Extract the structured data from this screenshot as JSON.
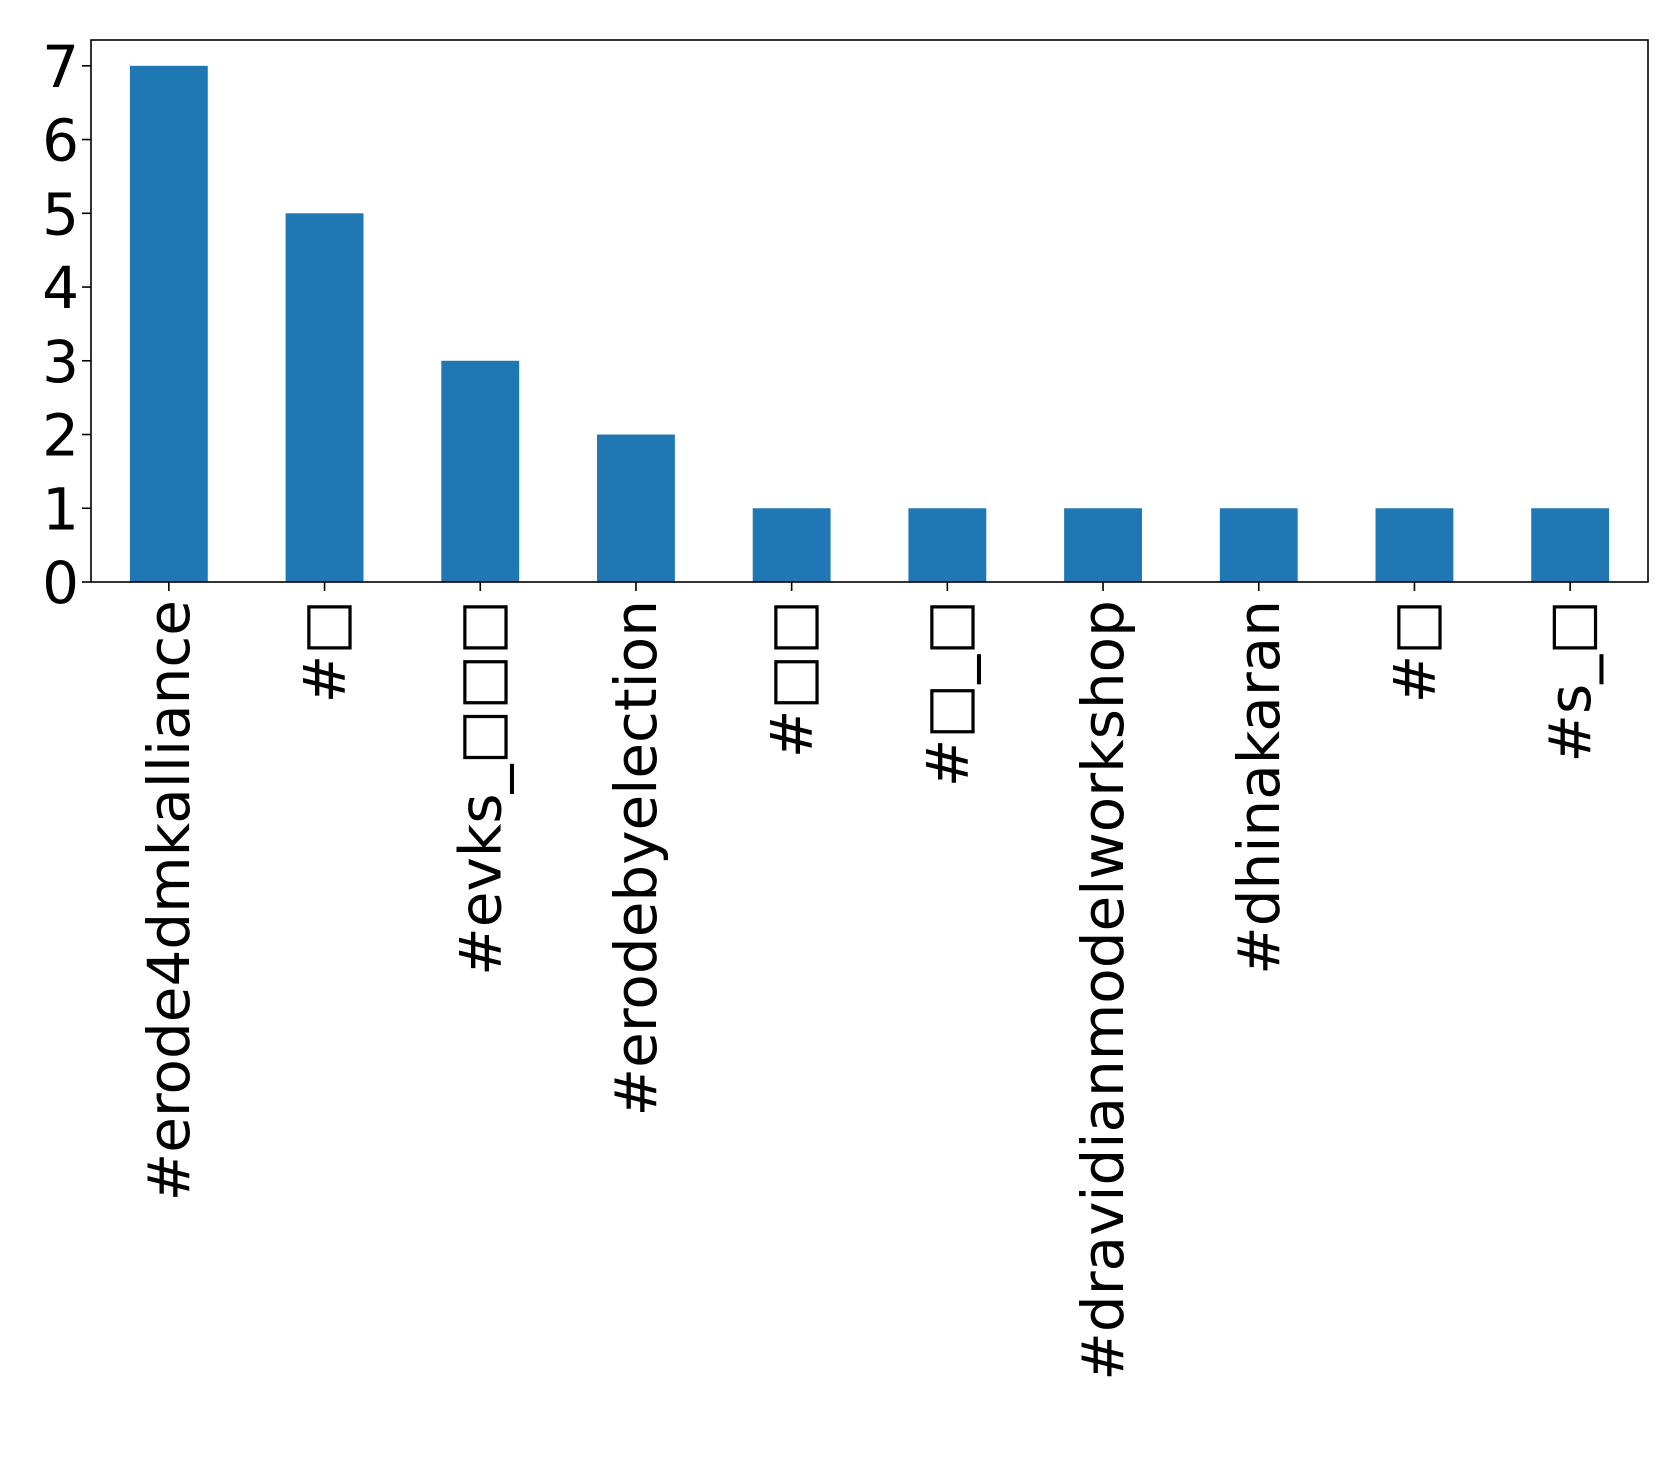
{
  "chart_data": {
    "type": "bar",
    "categories": [
      "#erode4dmkalliance",
      "#□",
      "#evks_□□□",
      "#erodebyelection",
      "#□□",
      "#□_□",
      "#dravidianmodelworkshop",
      "#dhinakaran",
      "#□",
      "#s_□"
    ],
    "values": [
      7,
      5,
      3,
      2,
      1,
      1,
      1,
      1,
      1,
      1
    ],
    "ylim": [
      0,
      7.35
    ],
    "yticks": [
      0,
      1,
      2,
      3,
      4,
      5,
      6,
      7
    ],
    "bar_color": "#1f77b4",
    "title": "",
    "xlabel": "",
    "ylabel": "",
    "grid": false,
    "legend": false
  }
}
